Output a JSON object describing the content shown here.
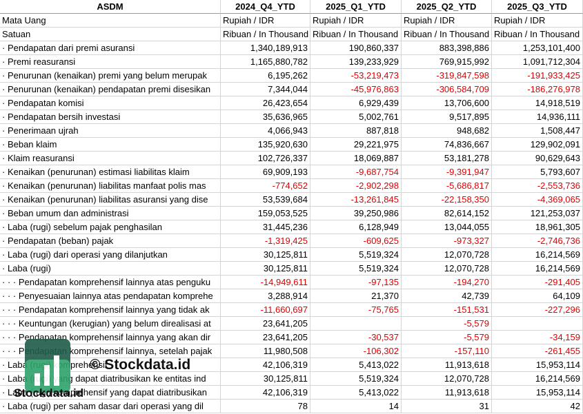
{
  "table": {
    "header": [
      "ASDM",
      "2024_Q4_YTD",
      "2025_Q1_YTD",
      "2025_Q2_YTD",
      "2025_Q3_YTD"
    ],
    "rows": [
      [
        "Mata Uang",
        "Rupiah / IDR",
        "Rupiah / IDR",
        "Rupiah / IDR",
        "Rupiah / IDR"
      ],
      [
        "Satuan",
        "Ribuan / In Thousand",
        "Ribuan / In Thousand",
        "Ribuan / In Thousand",
        "Ribuan / In Thousand"
      ],
      [
        "· Pendapatan dari premi asuransi",
        "1,340,189,913",
        "190,860,337",
        "883,398,886",
        "1,253,101,400"
      ],
      [
        "· Premi reasuransi",
        "1,165,880,782",
        "139,233,929",
        "769,915,992",
        "1,091,712,304"
      ],
      [
        "· Penurunan (kenaikan) premi yang belum merupak",
        "6,195,262",
        "-53,219,473",
        "-319,847,598",
        "-191,933,425"
      ],
      [
        "· Penurunan (kenaikan) pendapatan premi disesikan",
        "7,344,044",
        "-45,976,863",
        "-306,584,709",
        "-186,276,978"
      ],
      [
        "· Pendapatan komisi",
        "26,423,654",
        "6,929,439",
        "13,706,600",
        "14,918,519"
      ],
      [
        "· Pendapatan bersih investasi",
        "35,636,965",
        "5,002,761",
        "9,517,895",
        "14,936,111"
      ],
      [
        "· Penerimaan ujrah",
        "4,066,943",
        "887,818",
        "948,682",
        "1,508,447"
      ],
      [
        "· Beban klaim",
        "135,920,630",
        "29,221,975",
        "74,836,667",
        "129,902,091"
      ],
      [
        "· Klaim reasuransi",
        "102,726,337",
        "18,069,887",
        "53,181,278",
        "90,629,643"
      ],
      [
        "· Kenaikan (penurunan) estimasi liabilitas klaim",
        "69,909,193",
        "-9,687,754",
        "-9,391,947",
        "5,793,607"
      ],
      [
        "· Kenaikan (penurunan) liabilitas manfaat polis mas",
        "-774,652",
        "-2,902,298",
        "-5,686,817",
        "-2,553,736"
      ],
      [
        "· Kenaikan (penurunan) liabilitas asuransi yang dise",
        "53,539,684",
        "-13,261,845",
        "-22,158,350",
        "-4,369,065"
      ],
      [
        "· Beban umum dan administrasi",
        "159,053,525",
        "39,250,986",
        "82,614,152",
        "121,253,037"
      ],
      [
        "· Laba (rugi) sebelum pajak penghasilan",
        "31,445,236",
        "6,128,949",
        "13,044,055",
        "18,961,305"
      ],
      [
        "· Pendapatan (beban) pajak",
        "-1,319,425",
        "-609,625",
        "-973,327",
        "-2,746,736"
      ],
      [
        "· Laba (rugi) dari operasi yang dilanjutkan",
        "30,125,811",
        "5,519,324",
        "12,070,728",
        "16,214,569"
      ],
      [
        "· Laba (rugi)",
        "30,125,811",
        "5,519,324",
        "12,070,728",
        "16,214,569"
      ],
      [
        "· · · Pendapatan komprehensif lainnya atas penguku",
        "-14,949,611",
        "-97,135",
        "-194,270",
        "-291,405"
      ],
      [
        "· · · Penyesuaian lainnya atas pendapatan komprehe",
        "3,288,914",
        "21,370",
        "42,739",
        "64,109"
      ],
      [
        "· · · Pendapatan komprehensif lainnya yang tidak ak",
        "-11,660,697",
        "-75,765",
        "-151,531",
        "-227,296"
      ],
      [
        "· · · Keuntungan (kerugian) yang belum direalisasi at",
        "23,641,205",
        null,
        "-5,579",
        null
      ],
      [
        "· · · Pendapatan komprehensif lainnya yang akan dir",
        "23,641,205",
        "-30,537",
        "-5,579",
        "-34,159"
      ],
      [
        "· · · Pendapatan komprehensif lainnya, setelah pajak",
        "11,980,508",
        "-106,302",
        "-157,110",
        "-261,455"
      ],
      [
        "· Laba (rugi) komprehensif",
        "42,106,319",
        "5,413,022",
        "11,913,618",
        "15,953,114"
      ],
      [
        "· Laba (rugi) yang dapat diatribusikan ke entitas ind",
        "30,125,811",
        "5,519,324",
        "12,070,728",
        "16,214,569"
      ],
      [
        "· Laba (rugi) komprehensif yang dapat diatribusikan",
        "42,106,319",
        "5,413,022",
        "11,913,618",
        "15,953,114"
      ],
      [
        "· Laba (rugi) per saham dasar dari operasi yang dil",
        "78",
        "14",
        "31",
        "42"
      ]
    ]
  },
  "watermark": {
    "caption": "© Stockdata.id",
    "brand": "Stockdata.id"
  }
}
